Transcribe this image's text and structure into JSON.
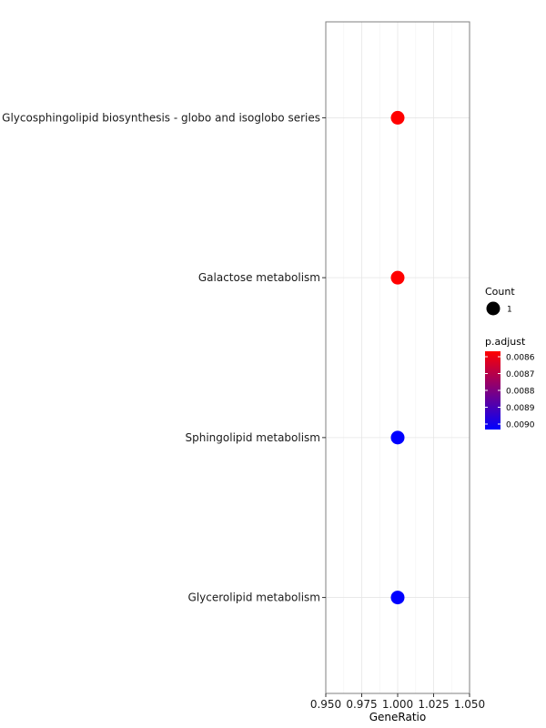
{
  "chart_data": {
    "type": "scatter",
    "xlabel": "GeneRatio",
    "ylabel": "",
    "xlim": [
      0.95,
      1.05
    ],
    "xticks": [
      "0.950",
      "0.975",
      "1.000",
      "1.025",
      "1.050"
    ],
    "xtick_values": [
      0.95,
      0.975,
      1.0,
      1.025,
      1.05
    ],
    "grid": true,
    "categories": [
      "Glycosphingolipid biosynthesis - globo and isoglobo series",
      "Galactose metabolism",
      "Sphingolipid metabolism",
      "Glycerolipid metabolism"
    ],
    "points": [
      {
        "term": "Glycosphingolipid biosynthesis - globo and isoglobo series",
        "gene_ratio": 1.0,
        "count": 1,
        "p_adjust": 0.0086,
        "color": "#FF0000"
      },
      {
        "term": "Galactose metabolism",
        "gene_ratio": 1.0,
        "count": 1,
        "p_adjust": 0.0086,
        "color": "#FF0000"
      },
      {
        "term": "Sphingolipid metabolism",
        "gene_ratio": 1.0,
        "count": 1,
        "p_adjust": 0.009,
        "color": "#0000FF"
      },
      {
        "term": "Glycerolipid metabolism",
        "gene_ratio": 1.0,
        "count": 1,
        "p_adjust": 0.009,
        "color": "#0000FF"
      }
    ],
    "legend": {
      "placement": "right",
      "size": {
        "title": "Count",
        "entries": [
          {
            "label": "1",
            "value": 1
          }
        ]
      },
      "color": {
        "title": "p.adjust",
        "low_color": "#FF0000",
        "high_color": "#0000FF",
        "ticks": [
          "0.0086",
          "0.0087",
          "0.0088",
          "0.0089",
          "0.0090"
        ]
      }
    }
  }
}
